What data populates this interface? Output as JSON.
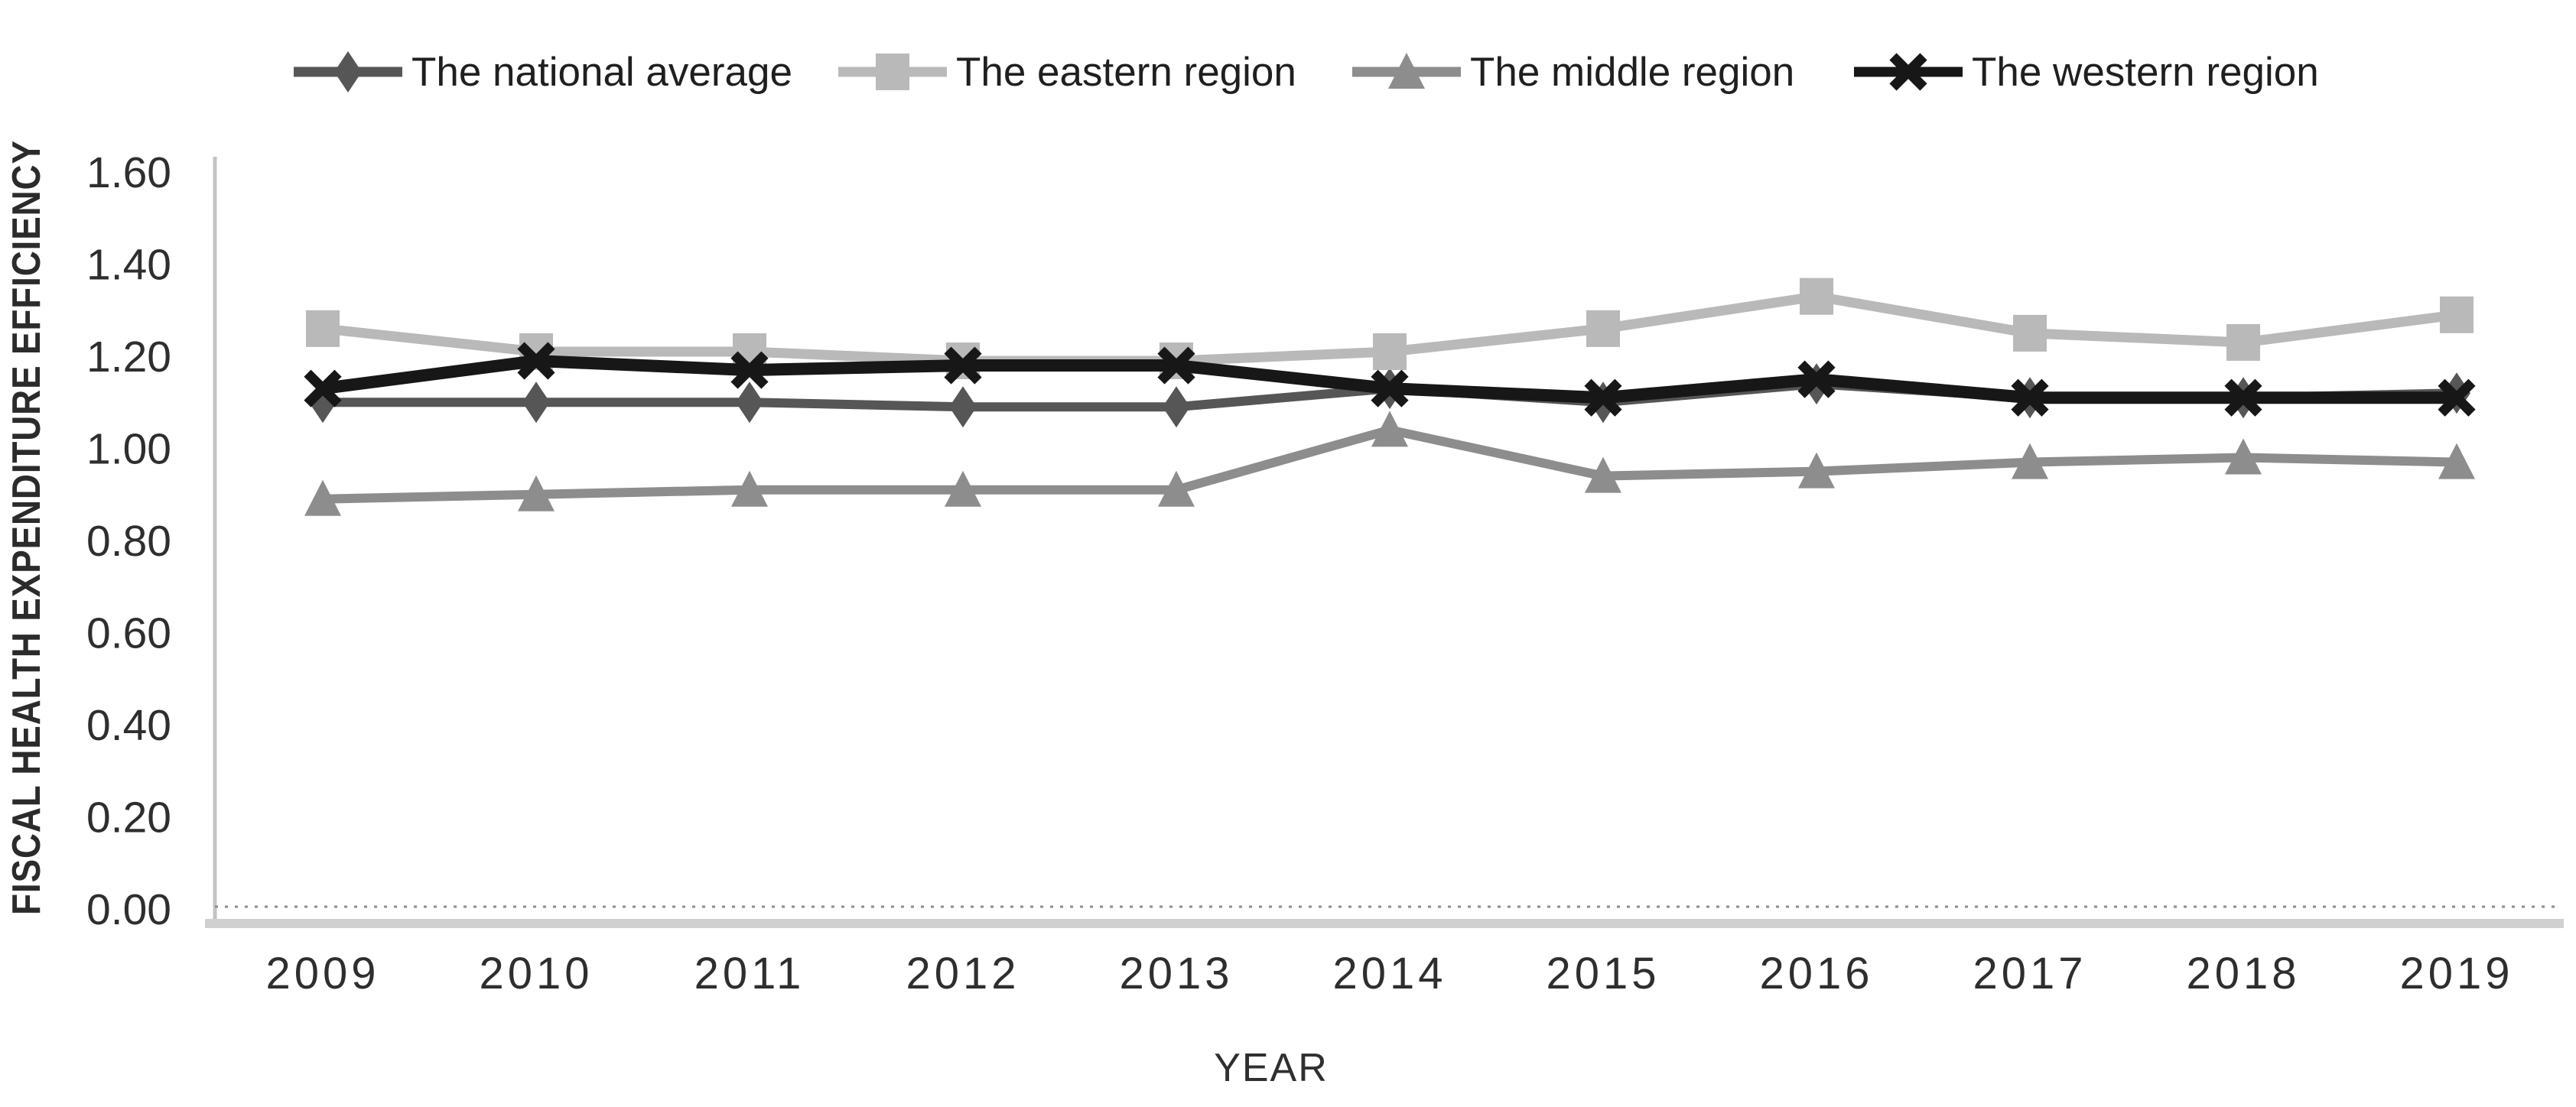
{
  "chart_data": {
    "type": "line",
    "title": "",
    "xlabel": "YEAR",
    "ylabel": "FISCAL HEALTH EXPENDITURE EFFICIENCY",
    "categories": [
      "2009",
      "2010",
      "2011",
      "2012",
      "2013",
      "2014",
      "2015",
      "2016",
      "2017",
      "2018",
      "2019"
    ],
    "y_ticks": [
      "0.00",
      "0.20",
      "0.40",
      "0.60",
      "0.80",
      "1.00",
      "1.20",
      "1.40",
      "1.60"
    ],
    "ylim": [
      0.0,
      1.6
    ],
    "grid": false,
    "legend_position": "top",
    "background_color": "#ffffff",
    "axis_color": "#c3c3c3",
    "text_color": "#2e2e2e",
    "series": [
      {
        "name": "The national average",
        "marker": "diamond",
        "color": "#565656",
        "line_width": 12,
        "values": [
          1.1,
          1.1,
          1.1,
          1.09,
          1.09,
          1.13,
          1.1,
          1.14,
          1.11,
          1.11,
          1.12
        ]
      },
      {
        "name": "The eastern region",
        "marker": "square",
        "color": "#b9b9b9",
        "line_width": 13,
        "values": [
          1.26,
          1.21,
          1.21,
          1.19,
          1.19,
          1.21,
          1.26,
          1.33,
          1.25,
          1.23,
          1.29
        ]
      },
      {
        "name": "The middle region",
        "marker": "triangle",
        "color": "#8d8d8d",
        "line_width": 12,
        "values": [
          0.89,
          0.9,
          0.91,
          0.91,
          0.91,
          1.04,
          0.94,
          0.95,
          0.97,
          0.98,
          0.97
        ]
      },
      {
        "name": "The western region",
        "marker": "x",
        "color": "#171717",
        "line_width": 16,
        "values": [
          1.13,
          1.19,
          1.17,
          1.18,
          1.18,
          1.13,
          1.11,
          1.15,
          1.11,
          1.11,
          1.11
        ]
      }
    ]
  }
}
